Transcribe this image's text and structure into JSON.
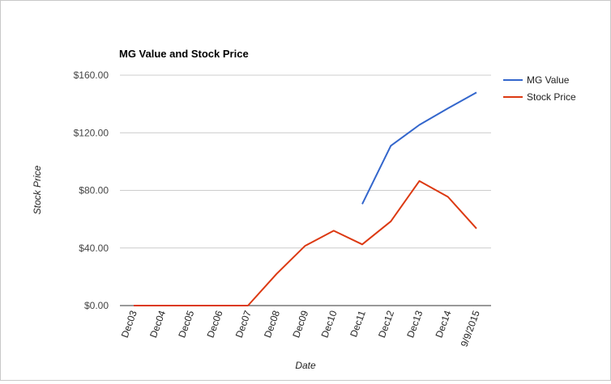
{
  "chart_data": {
    "type": "line",
    "title": "MG Value and Stock Price",
    "xlabel": "Date",
    "ylabel": "Stock Price",
    "categories": [
      "Dec03",
      "Dec04",
      "Dec05",
      "Dec06",
      "Dec07",
      "Dec08",
      "Dec09",
      "Dec10",
      "Dec11",
      "Dec12",
      "Dec13",
      "Dec14",
      "9/9/2015"
    ],
    "y_ticks": [
      "$0.00",
      "$40.00",
      "$80.00",
      "$120.00",
      "$160.00"
    ],
    "ylim": [
      0,
      160
    ],
    "grid": true,
    "legend": "right",
    "series": [
      {
        "name": "MG Value",
        "color": "#3366cc",
        "values": [
          null,
          null,
          null,
          null,
          null,
          null,
          null,
          null,
          70.5,
          111,
          125.5,
          137,
          148
        ]
      },
      {
        "name": "Stock Price",
        "color": "#dc3912",
        "values": [
          0,
          0,
          0,
          0,
          0,
          22,
          41.5,
          52,
          42.5,
          58.5,
          86.5,
          75.5,
          53.5
        ]
      }
    ]
  }
}
